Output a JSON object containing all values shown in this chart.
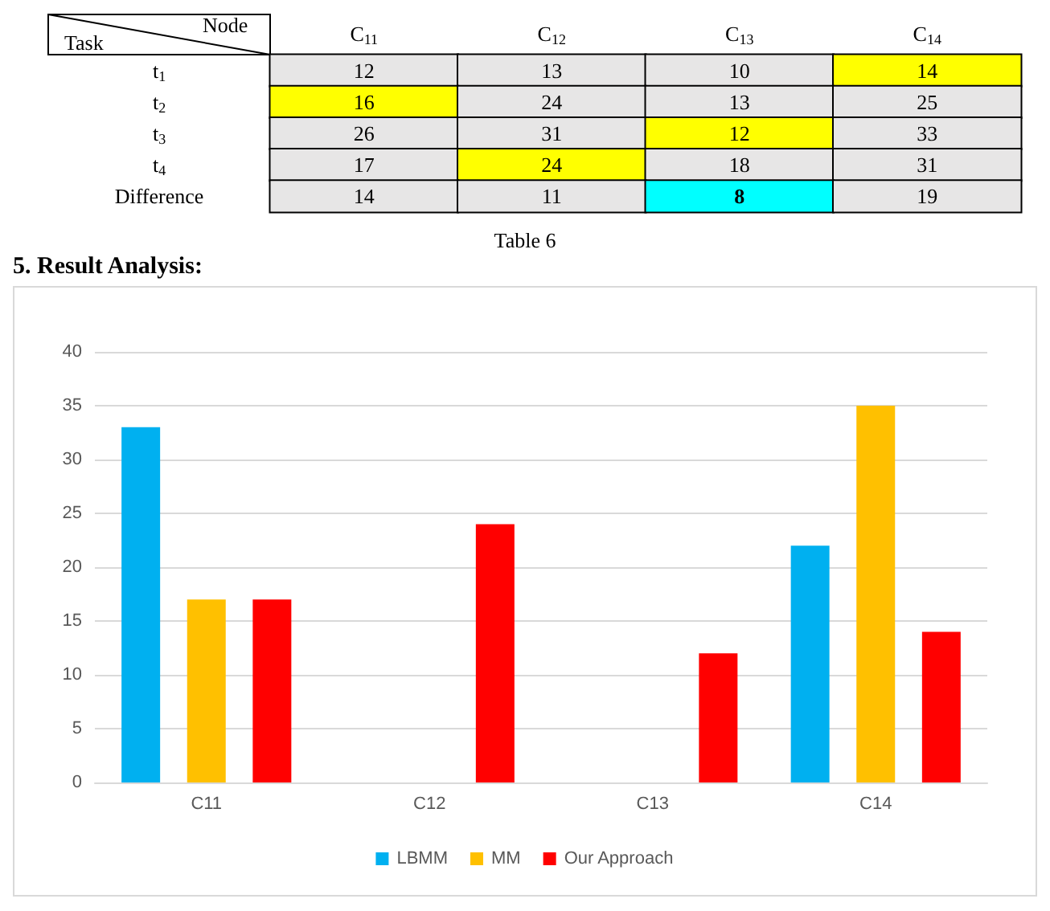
{
  "chart_data": [
    {
      "type": "heatmap",
      "xlabel": "Node",
      "ylabel": "Task",
      "categories": [
        "C$_{11}$",
        "C$_{12}$",
        "C$_{13}$",
        "C$_{14}$"
      ],
      "y_categories": [
        "t$_{1}$",
        "t$_{2}$",
        "t$_{3}$",
        "t$_{4}$",
        "Difference"
      ],
      "cells": [
        [
          12,
          13,
          10,
          14
        ],
        [
          16,
          24,
          13,
          25
        ],
        [
          26,
          31,
          12,
          33
        ],
        [
          17,
          24,
          18,
          31
        ],
        [
          14,
          11,
          8,
          19
        ]
      ],
      "colors": [
        [
          "#e7e6e6",
          "#e7e6e6",
          "#e7e6e6",
          "#ffff00"
        ],
        [
          "#ffff00",
          "#e7e6e6",
          "#e7e6e6",
          "#e7e6e6"
        ],
        [
          "#e7e6e6",
          "#e7e6e6",
          "#ffff00",
          "#e7e6e6"
        ],
        [
          "#e7e6e6",
          "#ffff00",
          "#e7e6e6",
          "#e7e6e6"
        ],
        [
          "#e7e6e6",
          "#e7e6e6",
          "#00ffff",
          "#e7e6e6"
        ]
      ],
      "data_labels": true,
      "annotations": [
        "Table 6"
      ]
    },
    {
      "type": "bar",
      "title": "5. Result Analysis:",
      "categories": [
        "C11",
        "C12",
        "C13",
        "C14"
      ],
      "series": [
        {
          "name": "LBMM",
          "color": "#00b0f0",
          "values": [
            33,
            null,
            null,
            22
          ]
        },
        {
          "name": "MM",
          "color": "#ffc000",
          "values": [
            17,
            null,
            null,
            35
          ]
        },
        {
          "name": "Our Approach",
          "color": "#ff0000",
          "values": [
            17,
            24,
            12,
            14
          ]
        }
      ],
      "ylim": [
        0,
        40
      ],
      "yticks": [
        0,
        5,
        10,
        15,
        20,
        25,
        30,
        35,
        40
      ],
      "grid": "y",
      "legend": "bottom"
    }
  ]
}
